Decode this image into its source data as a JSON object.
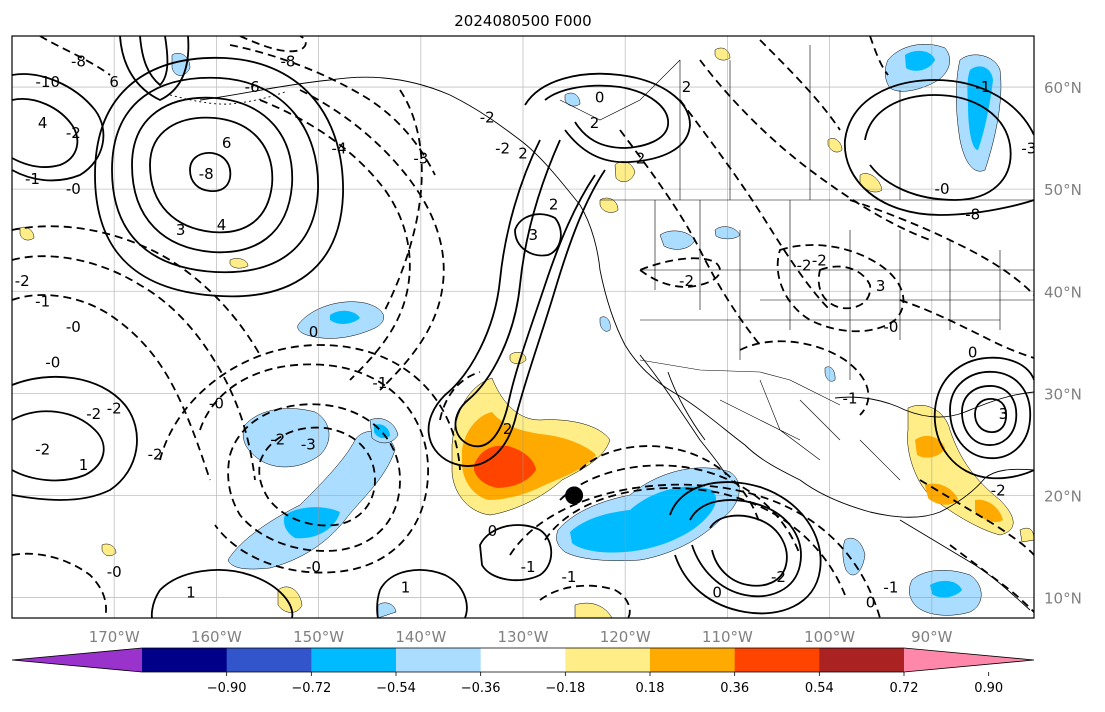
{
  "title": "2024080500 F000",
  "map": {
    "type": "map",
    "projection": "PlateCarree",
    "extent": {
      "lon": [
        -180,
        -80
      ],
      "lat": [
        8,
        65
      ]
    },
    "grid": true,
    "lon_ticks": [
      {
        "value": -170,
        "label": "170°W"
      },
      {
        "value": -160,
        "label": "160°W"
      },
      {
        "value": -150,
        "label": "150°W"
      },
      {
        "value": -140,
        "label": "140°W"
      },
      {
        "value": -130,
        "label": "130°W"
      },
      {
        "value": -120,
        "label": "120°W"
      },
      {
        "value": -110,
        "label": "110°W"
      },
      {
        "value": -100,
        "label": "100°W"
      },
      {
        "value": -90,
        "label": "90°W"
      }
    ],
    "lat_ticks": [
      {
        "value": 60,
        "label": "60°N"
      },
      {
        "value": 50,
        "label": "50°N"
      },
      {
        "value": 40,
        "label": "40°N"
      },
      {
        "value": 30,
        "label": "30°N"
      },
      {
        "value": 20,
        "label": "20°N"
      },
      {
        "value": 10,
        "label": "10°N"
      }
    ],
    "tick_label_color": "#808080",
    "marker": {
      "lon": -125,
      "lat": 20,
      "color": "#000000"
    },
    "contour_labels": [
      {
        "text": "-10",
        "lon": -176.5,
        "lat": 60.5
      },
      {
        "text": "-8",
        "lon": -173.5,
        "lat": 62.5
      },
      {
        "text": "6",
        "lon": -170,
        "lat": 60.5
      },
      {
        "text": "4",
        "lon": -177,
        "lat": 56.5
      },
      {
        "text": "-2",
        "lon": -174,
        "lat": 55.5
      },
      {
        "text": "6",
        "lon": -159,
        "lat": 54.5
      },
      {
        "text": "-8",
        "lon": -161,
        "lat": 51.5
      },
      {
        "text": "3",
        "lon": -163.5,
        "lat": 46
      },
      {
        "text": "4",
        "lon": -159.5,
        "lat": 46.5
      },
      {
        "text": "-8",
        "lon": -153,
        "lat": 62.5
      },
      {
        "text": "-6",
        "lon": -156.5,
        "lat": 60
      },
      {
        "text": "-4",
        "lon": -148,
        "lat": 54
      },
      {
        "text": "-3",
        "lon": -140,
        "lat": 53
      },
      {
        "text": "-0",
        "lon": -174,
        "lat": 50
      },
      {
        "text": "-1",
        "lon": -178,
        "lat": 51
      },
      {
        "text": "-2",
        "lon": -179,
        "lat": 41
      },
      {
        "text": "-1",
        "lon": -177,
        "lat": 39
      },
      {
        "text": "-0",
        "lon": -174,
        "lat": 36.5
      },
      {
        "text": "-0",
        "lon": -176,
        "lat": 33
      },
      {
        "text": "-2",
        "lon": -172,
        "lat": 28
      },
      {
        "text": "-2",
        "lon": -170,
        "lat": 28.5
      },
      {
        "text": "-2",
        "lon": -177,
        "lat": 24.5
      },
      {
        "text": "1",
        "lon": -173,
        "lat": 23
      },
      {
        "text": "0",
        "lon": -150.5,
        "lat": 36
      },
      {
        "text": "-0",
        "lon": -160,
        "lat": 29
      },
      {
        "text": "-3",
        "lon": -151,
        "lat": 25
      },
      {
        "text": "-2",
        "lon": -154,
        "lat": 25.5
      },
      {
        "text": "-2",
        "lon": -166,
        "lat": 24
      },
      {
        "text": "-1",
        "lon": -144,
        "lat": 31
      },
      {
        "text": "-0",
        "lon": -170,
        "lat": 12.5
      },
      {
        "text": "-0",
        "lon": -150.5,
        "lat": 13
      },
      {
        "text": "1",
        "lon": -162.5,
        "lat": 10.5
      },
      {
        "text": "1",
        "lon": -141.5,
        "lat": 11
      },
      {
        "text": "0",
        "lon": -133,
        "lat": 16.5
      },
      {
        "text": "-1",
        "lon": -129.5,
        "lat": 13
      },
      {
        "text": "-1",
        "lon": -125.5,
        "lat": 12
      },
      {
        "text": "2",
        "lon": -123,
        "lat": 56.5
      },
      {
        "text": "2",
        "lon": -118.5,
        "lat": 53
      },
      {
        "text": "2",
        "lon": -127,
        "lat": 48.5
      },
      {
        "text": "3",
        "lon": -129,
        "lat": 45.5
      },
      {
        "text": "-2",
        "lon": -132,
        "lat": 54
      },
      {
        "text": "2",
        "lon": -130,
        "lat": 53.5
      },
      {
        "text": "0",
        "lon": -122.5,
        "lat": 59
      },
      {
        "text": "-2",
        "lon": -133.5,
        "lat": 57
      },
      {
        "text": "2",
        "lon": -114,
        "lat": 60
      },
      {
        "text": "-2",
        "lon": -114,
        "lat": 41
      },
      {
        "text": "-2",
        "lon": -102.5,
        "lat": 42.5
      },
      {
        "text": "-2",
        "lon": -101,
        "lat": 43
      },
      {
        "text": "3",
        "lon": -95,
        "lat": 40.5
      },
      {
        "text": "-0",
        "lon": -94,
        "lat": 36.5
      },
      {
        "text": "0",
        "lon": -86,
        "lat": 34
      },
      {
        "text": "-1",
        "lon": -98,
        "lat": 29.5
      },
      {
        "text": "2",
        "lon": -131.5,
        "lat": 26.5
      },
      {
        "text": "0",
        "lon": -111,
        "lat": 10.5
      },
      {
        "text": "-2",
        "lon": -105,
        "lat": 12
      },
      {
        "text": "-1",
        "lon": -94,
        "lat": 11
      },
      {
        "text": "0",
        "lon": -96,
        "lat": 9.5
      },
      {
        "text": "-0",
        "lon": -89,
        "lat": 50
      },
      {
        "text": "-1",
        "lon": -85,
        "lat": 60
      },
      {
        "text": "-3",
        "lon": -80.5,
        "lat": 54
      },
      {
        "text": "-8",
        "lon": -86,
        "lat": 47.5
      },
      {
        "text": "3",
        "lon": -83,
        "lat": 28
      },
      {
        "text": "-2",
        "lon": -83.5,
        "lat": 20.5
      }
    ]
  },
  "colorbar": {
    "tick_labels": [
      "−0.90",
      "−0.72",
      "−0.54",
      "−0.36",
      "−0.18",
      "0.18",
      "0.36",
      "0.54",
      "0.72",
      "0.90"
    ],
    "colors": [
      "#9933cc",
      "#000088",
      "#3355cc",
      "#00bbff",
      "#aaddff",
      "#ffffff",
      "#ffee88",
      "#ffaa00",
      "#ff4400",
      "#aa2222",
      "#ff88aa"
    ]
  }
}
